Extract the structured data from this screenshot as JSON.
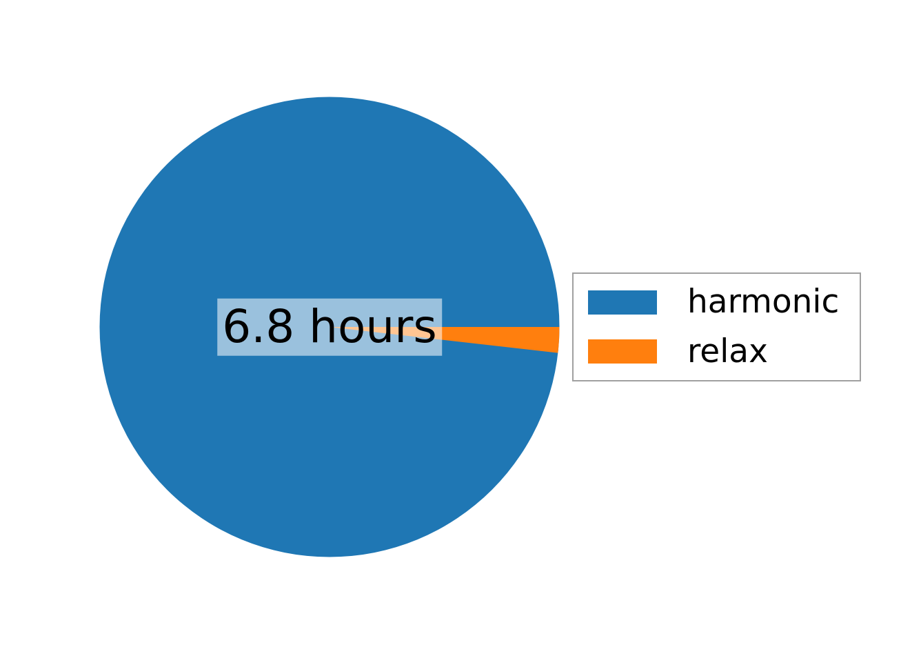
{
  "chart_data": {
    "type": "pie",
    "categories": [
      "harmonic",
      "relax"
    ],
    "values_percent": [
      98.2,
      1.8
    ],
    "colors": [
      "#1f77b4",
      "#ff7f0e"
    ],
    "start_angle_deg": 0,
    "direction": "counterclockwise",
    "center_label": "6.8 hours",
    "center_label_bbox": "rgba(255,255,255,0.55)",
    "title": "",
    "legend": {
      "position": "center right",
      "entries": [
        "harmonic",
        "relax"
      ]
    }
  }
}
